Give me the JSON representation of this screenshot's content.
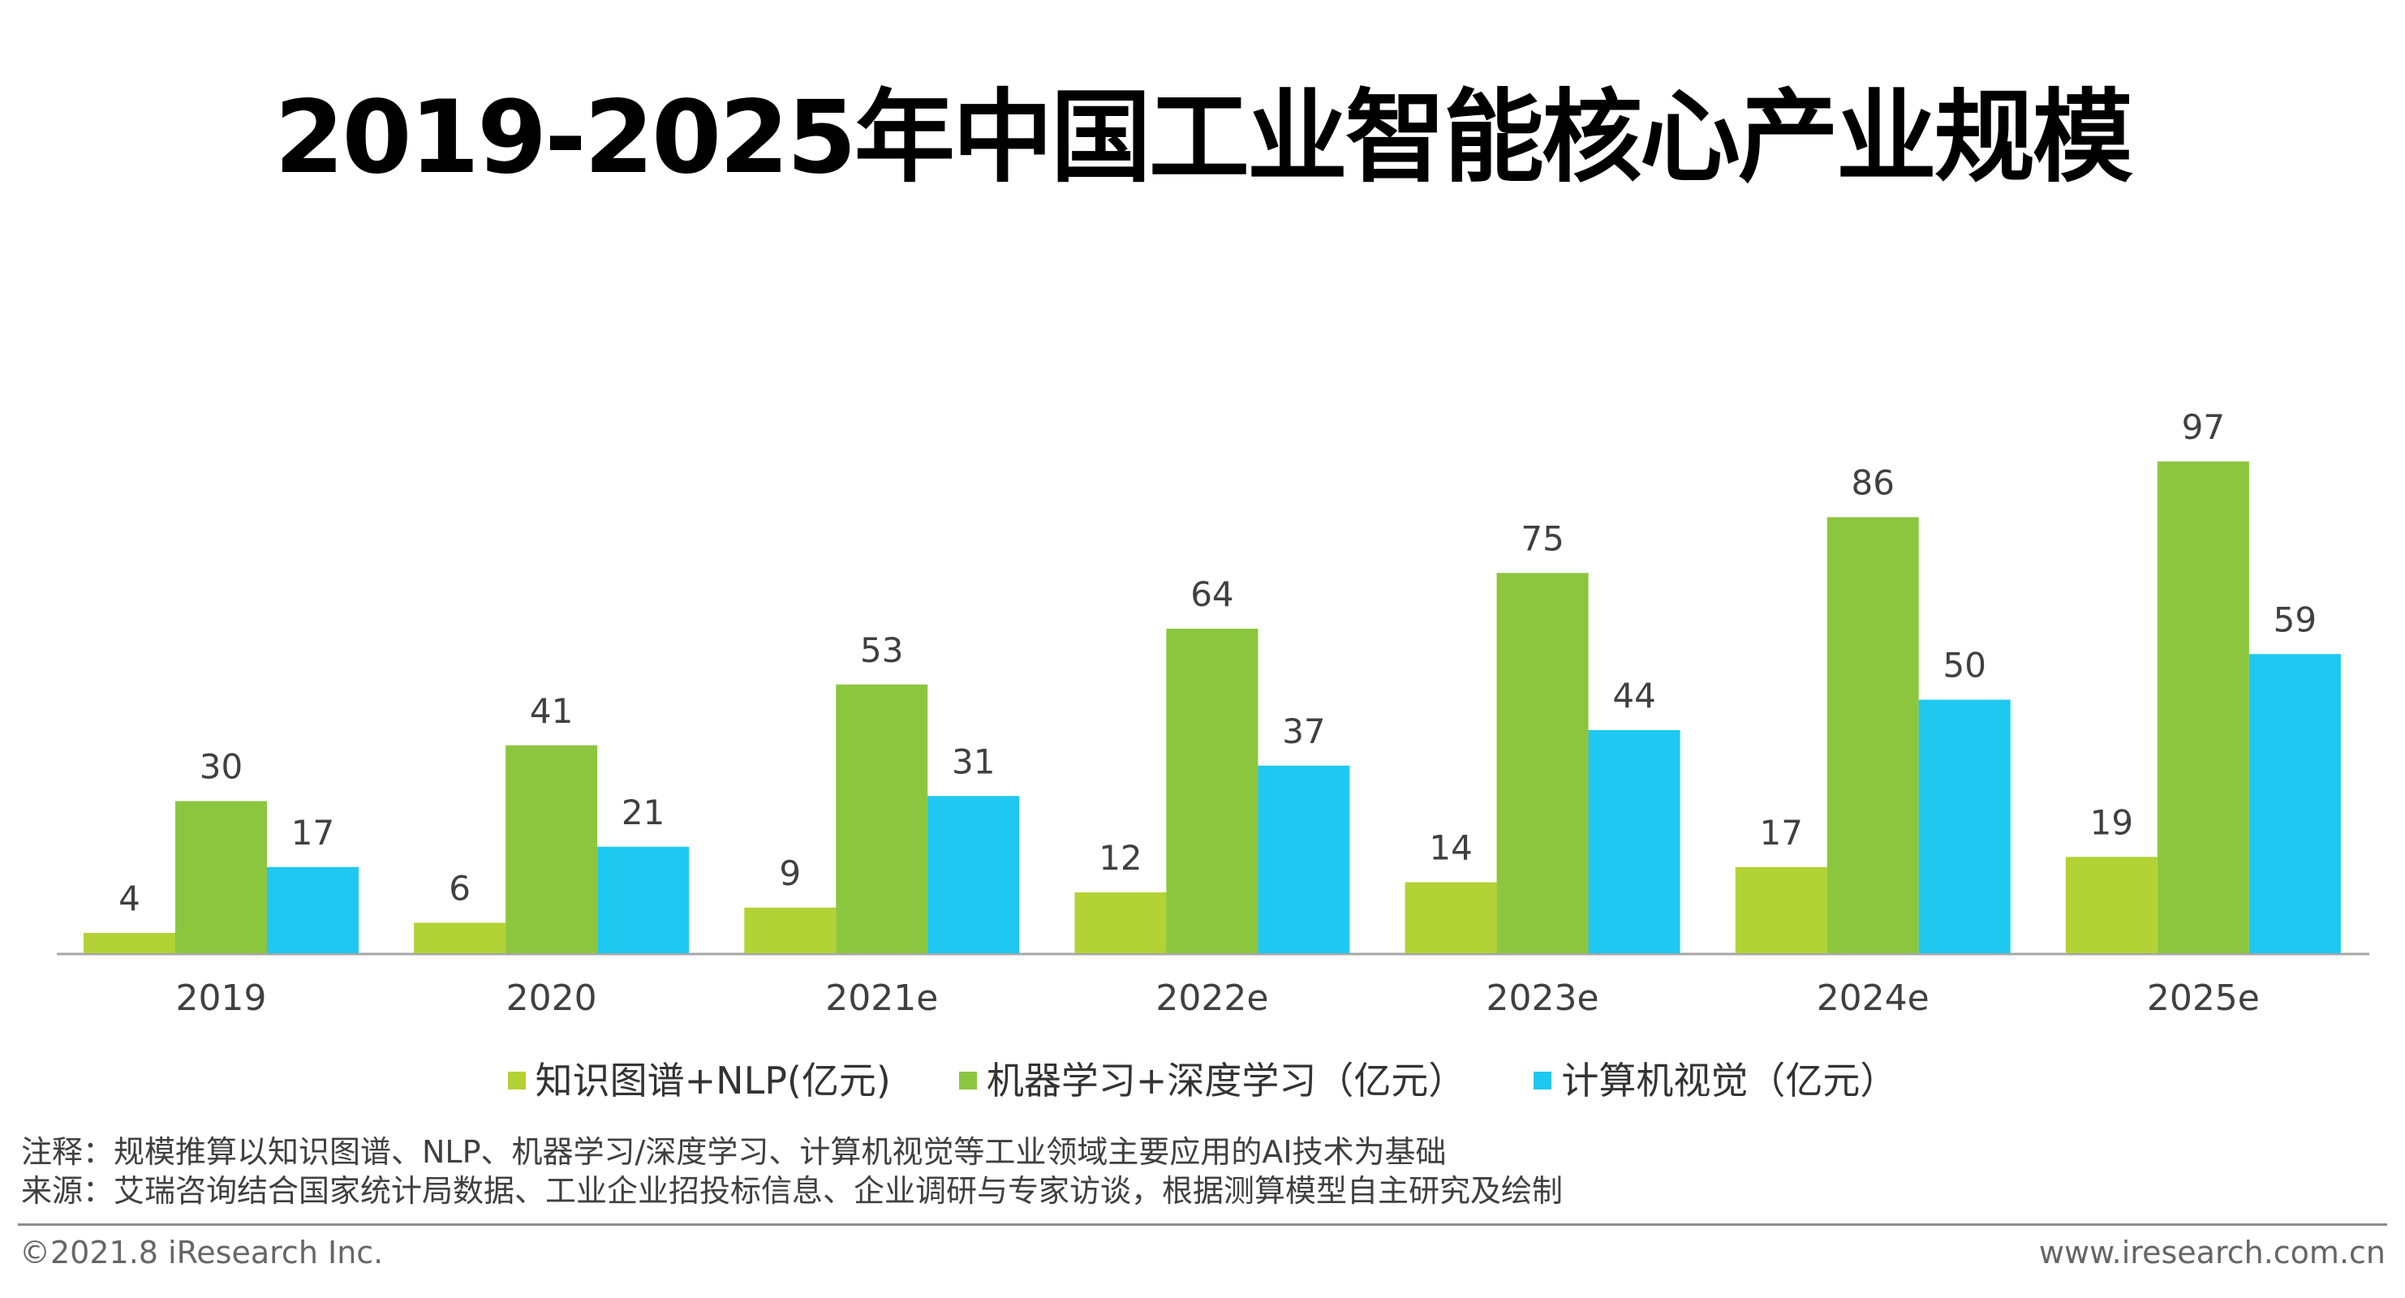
{
  "title": "2019-2025年中国工业智能核心产业规模",
  "chart_data": {
    "type": "bar",
    "title": "2019-2025年中国工业智能核心产业规模",
    "categories": [
      "2019",
      "2020",
      "2021e",
      "2022e",
      "2023e",
      "2024e",
      "2025e"
    ],
    "series": [
      {
        "name": "知识图谱+NLP(亿元)",
        "color": "#b2d235",
        "values": [
          4,
          6,
          9,
          12,
          14,
          17,
          19
        ]
      },
      {
        "name": "机器学习+深度学习（亿元）",
        "color": "#8cc63f",
        "values": [
          30,
          41,
          53,
          64,
          75,
          86,
          97
        ]
      },
      {
        "name": "计算机视觉（亿元）",
        "color": "#1fc8f0",
        "values": [
          17,
          21,
          31,
          37,
          44,
          50,
          59
        ]
      }
    ],
    "ylim": [
      0,
      100
    ],
    "grid": false,
    "legend": "bottom",
    "data_labels": true
  },
  "notes": {
    "note": "注释：规模推算以知识图谱、NLP、机器学习/深度学习、计算机视觉等工业领域主要应用的AI技术为基础",
    "source": "来源：艾瑞咨询结合国家统计局数据、工业企业招投标信息、企业调研与专家访谈，根据测算模型自主研究及绘制"
  },
  "footer": {
    "copyright": "©2021.8 iResearch Inc.",
    "website": "www.iresearch.com.cn"
  }
}
